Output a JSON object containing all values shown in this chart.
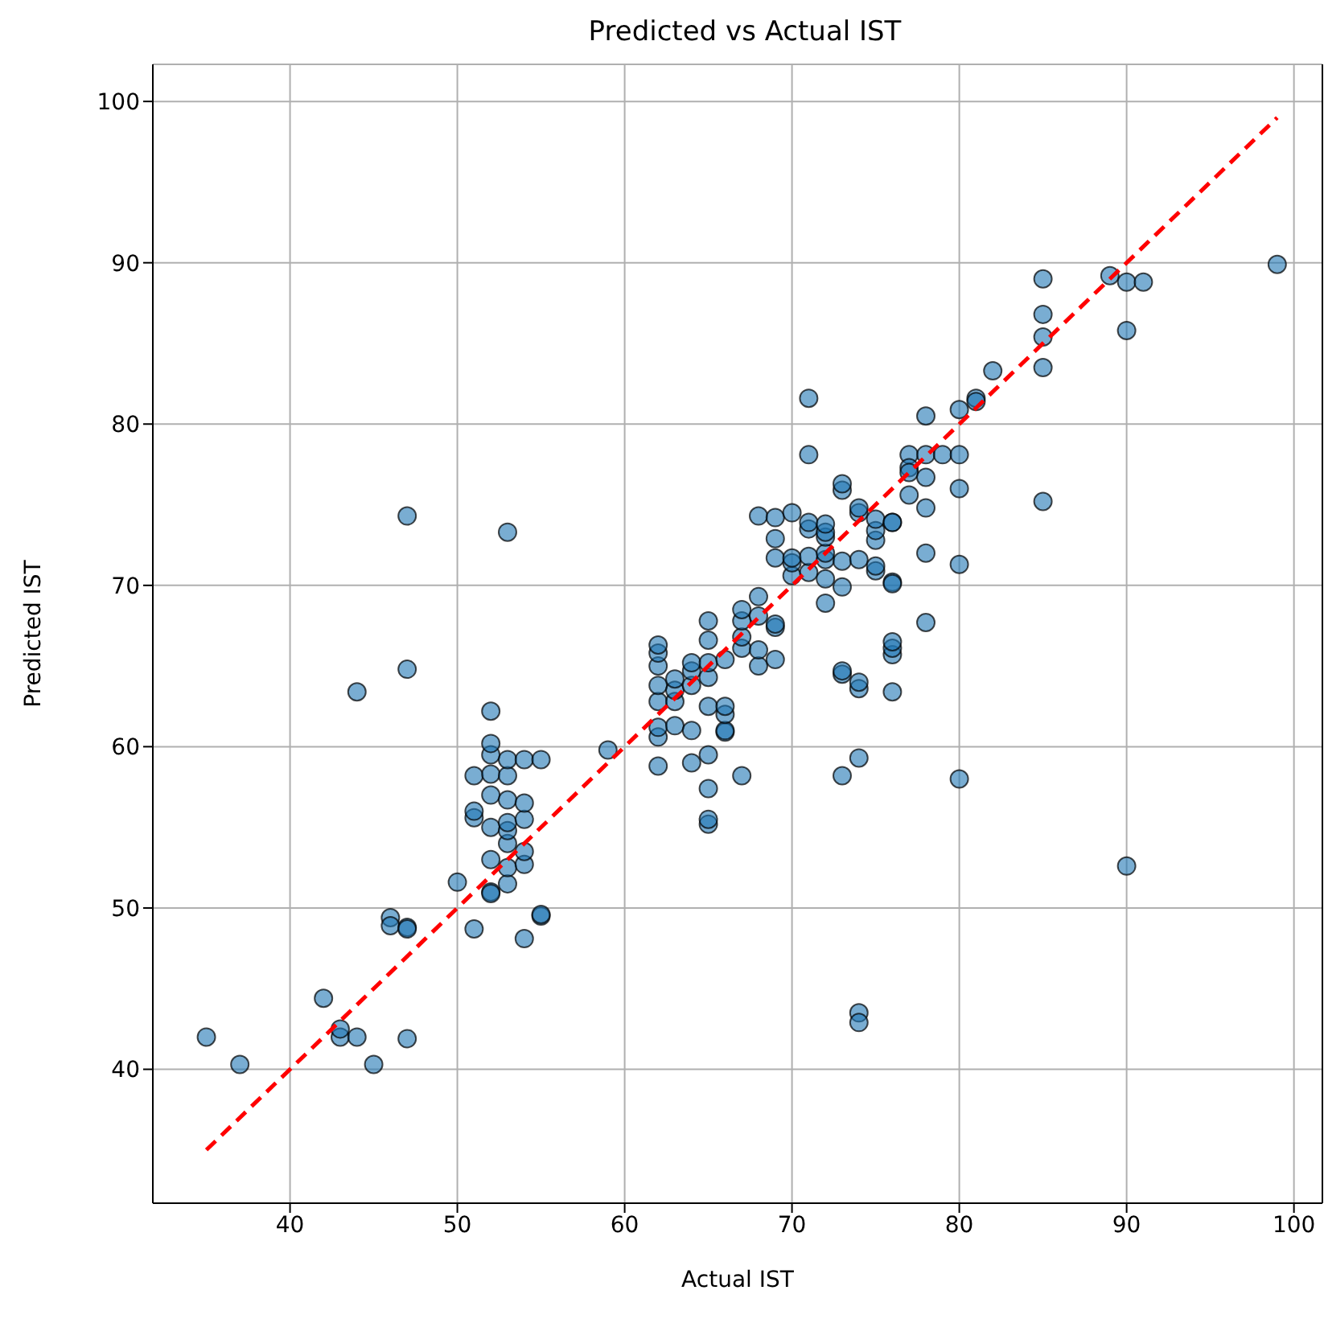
{
  "chart_data": {
    "type": "scatter",
    "title": "Predicted vs Actual IST",
    "xlabel": "Actual IST",
    "ylabel": "Predicted IST",
    "xlim": [
      31.8,
      101.7
    ],
    "ylim": [
      31.7,
      102.3
    ],
    "xticks": [
      40,
      50,
      60,
      70,
      80,
      90,
      100
    ],
    "yticks": [
      40,
      50,
      60,
      70,
      80,
      90,
      100
    ],
    "grid": true,
    "legend": false,
    "marker": "circle",
    "series": [
      {
        "type": "scatter",
        "color": "#1f77b4",
        "x": [
          35,
          37,
          42,
          43,
          43,
          44,
          45,
          47,
          44,
          47,
          47,
          46,
          46,
          47,
          47,
          50,
          51,
          51,
          51,
          51,
          52,
          52,
          52,
          52,
          52,
          52,
          52,
          52,
          52,
          53,
          53,
          53,
          53,
          53,
          53,
          53,
          53,
          53,
          54,
          54,
          54,
          54,
          54,
          54,
          55,
          55,
          55,
          59,
          62,
          62,
          62,
          62,
          62,
          62,
          62,
          62,
          63,
          63,
          63,
          63,
          64,
          64,
          64,
          64,
          64,
          65,
          65,
          65,
          65,
          65,
          65,
          65,
          65,
          65,
          66,
          66,
          66,
          66,
          66,
          67,
          67,
          67,
          67,
          67,
          68,
          68,
          68,
          68,
          68,
          69,
          69,
          69,
          69,
          69,
          69,
          70,
          70,
          70,
          70,
          71,
          71,
          71,
          71,
          71,
          71,
          72,
          72,
          72,
          72,
          72,
          72,
          72,
          73,
          73,
          73,
          73,
          73,
          73,
          73,
          74,
          74,
          74,
          74,
          74,
          74,
          74,
          74,
          75,
          75,
          75,
          75,
          75,
          76,
          76,
          76,
          76,
          76,
          76,
          76,
          76,
          77,
          77,
          77,
          77,
          78,
          78,
          78,
          78,
          78,
          78,
          79,
          80,
          80,
          80,
          80,
          80,
          81,
          81,
          82,
          85,
          85,
          85,
          85,
          85,
          89,
          90,
          90,
          91,
          90,
          99
        ],
        "values": [
          42.0,
          40.3,
          44.4,
          42.0,
          42.5,
          42.0,
          40.3,
          41.9,
          63.4,
          64.8,
          74.3,
          49.4,
          48.9,
          48.8,
          48.7,
          51.6,
          48.7,
          55.6,
          56.0,
          58.2,
          51.0,
          50.9,
          53.0,
          55.0,
          57.0,
          58.3,
          59.5,
          60.2,
          62.2,
          51.5,
          52.5,
          54.0,
          54.8,
          55.3,
          56.7,
          58.2,
          59.2,
          73.3,
          48.1,
          52.7,
          53.5,
          55.5,
          56.5,
          59.2,
          59.2,
          49.5,
          49.6,
          59.8,
          58.8,
          60.6,
          61.2,
          62.8,
          63.8,
          65.0,
          65.8,
          66.3,
          61.3,
          62.8,
          63.5,
          64.2,
          59.0,
          61.0,
          63.8,
          64.7,
          65.2,
          55.2,
          55.5,
          57.4,
          59.5,
          62.5,
          64.3,
          65.2,
          66.6,
          67.8,
          60.9,
          61.0,
          62.0,
          62.5,
          65.4,
          58.2,
          66.1,
          66.8,
          67.8,
          68.5,
          65.0,
          66.0,
          68.1,
          69.3,
          74.3,
          65.4,
          67.4,
          67.6,
          71.7,
          72.9,
          74.2,
          70.6,
          71.4,
          71.7,
          74.5,
          70.8,
          71.8,
          73.5,
          73.9,
          78.1,
          81.6,
          68.9,
          70.4,
          71.6,
          72.0,
          73.0,
          73.3,
          73.8,
          58.2,
          64.5,
          64.7,
          69.9,
          71.5,
          75.9,
          76.3,
          43.5,
          42.9,
          59.3,
          63.6,
          64.0,
          71.6,
          74.5,
          74.8,
          70.9,
          71.2,
          72.8,
          73.4,
          74.1,
          63.4,
          65.7,
          66.1,
          66.5,
          70.2,
          73.9,
          70.1,
          73.9,
          78.1,
          77.3,
          75.6,
          77.0,
          80.5,
          76.7,
          74.8,
          72.0,
          67.7,
          78.1,
          78.1,
          78.1,
          76.0,
          71.3,
          58.0,
          80.9,
          81.6,
          81.4,
          83.3,
          83.5,
          85.4,
          86.8,
          89.0,
          75.2,
          89.2,
          88.8,
          85.8,
          88.8,
          52.6,
          89.9
        ]
      },
      {
        "type": "line",
        "color": "#ff0000",
        "line_style": "dashed",
        "marker": "none",
        "x": [
          35,
          99
        ],
        "values": [
          35,
          99
        ]
      }
    ]
  }
}
